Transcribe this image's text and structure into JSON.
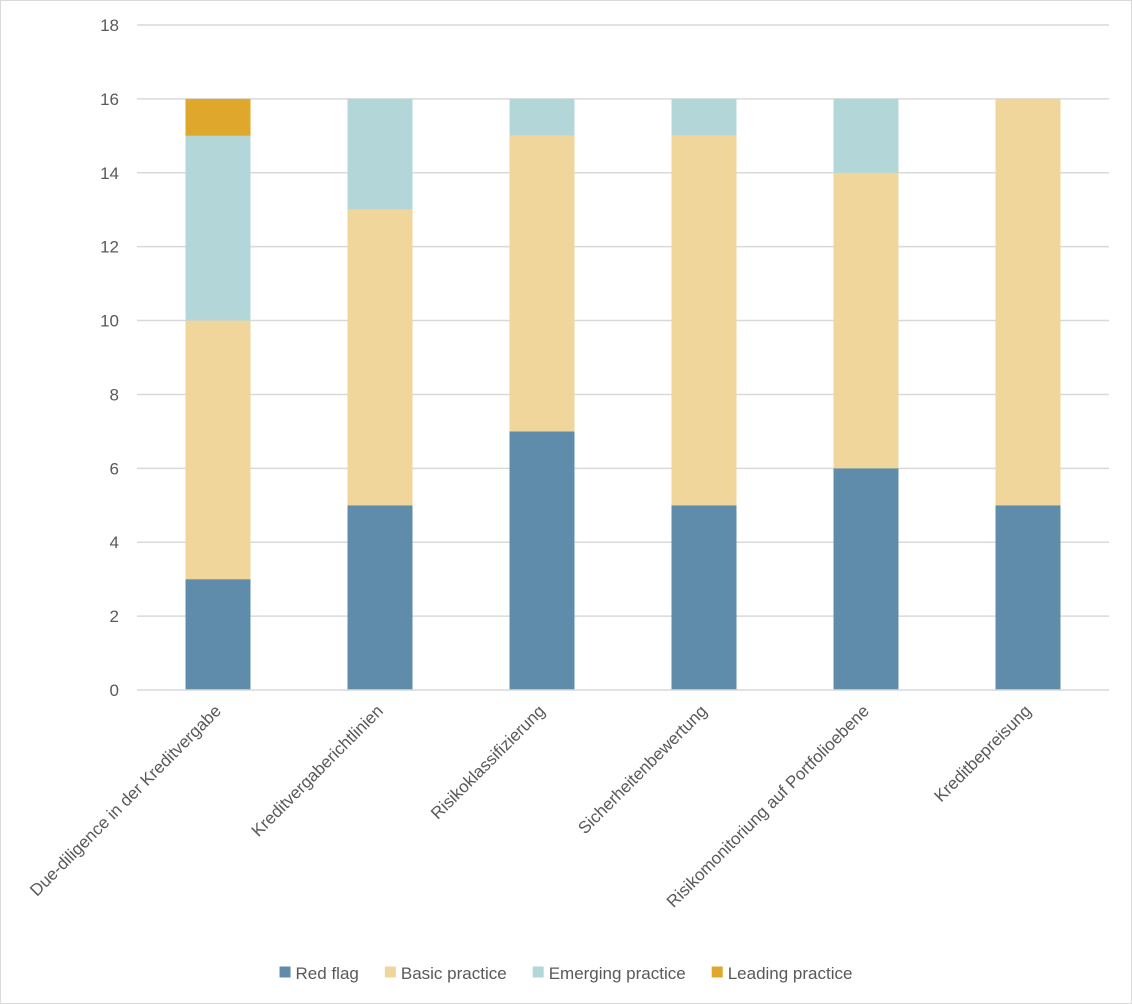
{
  "chart_data": {
    "type": "bar",
    "stacked": true,
    "title": "",
    "xlabel": "",
    "ylabel": "",
    "ylim": [
      0,
      18
    ],
    "y_ticks": [
      0,
      2,
      4,
      6,
      8,
      10,
      12,
      14,
      16,
      18
    ],
    "grid": true,
    "legend_position": "bottom",
    "categories": [
      "Due-diligence in der Kreditvergabe",
      "Kreditvergaberichtlinien",
      "Risikoklassifizierung",
      "Sicherheitenbewertung",
      "Risikomonitoriung auf Portfolioebene",
      "Kreditbepreisung"
    ],
    "series": [
      {
        "name": "Red flag",
        "color": "#5f8cab",
        "values": [
          3,
          5,
          7,
          5,
          6,
          5
        ]
      },
      {
        "name": "Basic practice",
        "color": "#f0d69b",
        "values": [
          7,
          8,
          8,
          10,
          8,
          11
        ]
      },
      {
        "name": "Emerging practice",
        "color": "#b3d7d8",
        "values": [
          5,
          3,
          1,
          1,
          2,
          0
        ]
      },
      {
        "name": "Leading practice",
        "color": "#dfa72b",
        "values": [
          1,
          0,
          0,
          0,
          0,
          0
        ]
      }
    ],
    "gridline_color": "#d9d9d9",
    "axis_text_color": "#595959"
  }
}
